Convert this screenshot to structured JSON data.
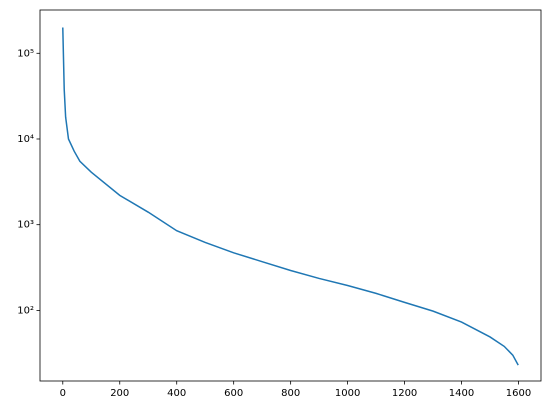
{
  "chart_data": {
    "type": "line",
    "log_y": true,
    "color": "#1f77b4",
    "x": [
      0,
      5,
      10,
      20,
      40,
      60,
      100,
      200,
      300,
      400,
      500,
      600,
      700,
      800,
      900,
      1000,
      1100,
      1200,
      1300,
      1400,
      1500,
      1550,
      1580,
      1599
    ],
    "values": [
      200000,
      38000,
      18000,
      10000,
      7200,
      5500,
      4100,
      2200,
      1400,
      850,
      620,
      470,
      370,
      292,
      236,
      195,
      158,
      124,
      98,
      73,
      49,
      38,
      30,
      23
    ],
    "xlim": [
      -80,
      1679
    ],
    "xticks": [
      0,
      200,
      400,
      600,
      800,
      1000,
      1200,
      1400,
      1600
    ],
    "ylim": [
      15,
      320000
    ],
    "yticks": [
      {
        "value": 100,
        "label": "10²"
      },
      {
        "value": 1000,
        "label": "10³"
      },
      {
        "value": 10000,
        "label": "10⁴"
      },
      {
        "value": 100000,
        "label": "10⁵"
      }
    ]
  }
}
